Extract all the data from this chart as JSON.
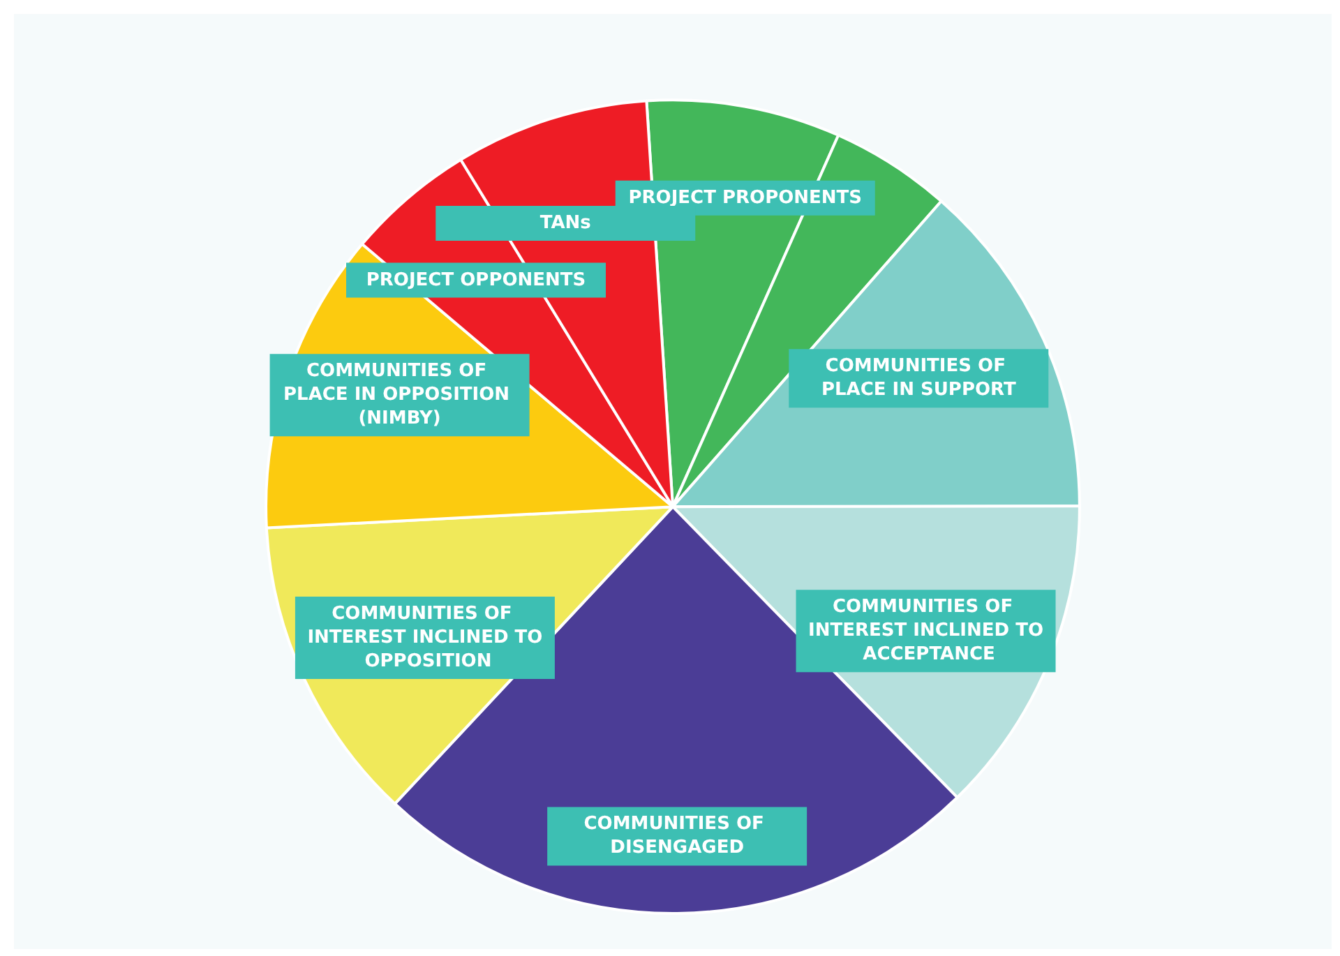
{
  "chart_data": {
    "type": "pie",
    "categories": [
      "PROJECT PROPONENTS",
      null,
      "COMMUNITIES OF PLACE IN SUPPORT",
      "COMMUNITIES OF INTEREST INCLINED TO ACCEPTANCE",
      "COMMUNITIES OF DISENGAGED",
      "COMMUNITIES OF INTEREST INCLINED TO OPPOSITION",
      "COMMUNITIES OF PLACE IN OPPOSITION (NIMBY)",
      "PROJECT OPPONENTS",
      "TANs"
    ],
    "values": [
      7.7,
      4.8,
      13.5,
      12.7,
      24.3,
      12.2,
      12.0,
      5.1,
      7.7
    ],
    "colors": [
      "#43b75a",
      "#43b75a",
      "#80cfc9",
      "#b5e0dd",
      "#4b3d96",
      "#f0e95a",
      "#fccb0f",
      "#ee1c25",
      "#ee1c25"
    ]
  }
}
